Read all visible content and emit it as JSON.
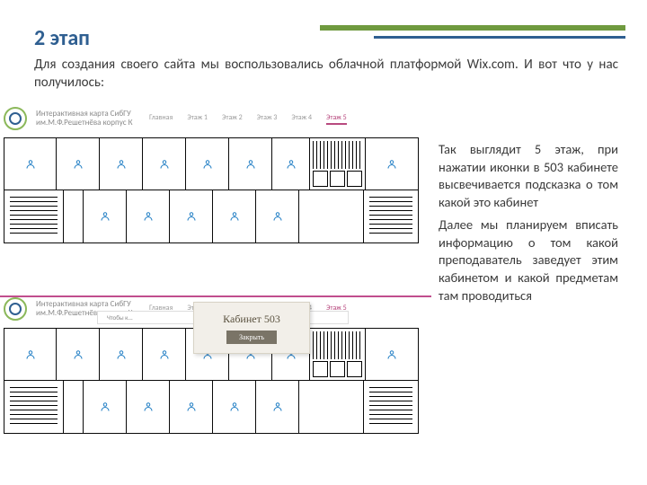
{
  "title": "2 этап",
  "intro": "Для создания своего сайта мы воспользовались облачной платформой Wix.com. И вот что у нас получилось:",
  "right_text": {
    "p1": "Так выглядит 5 этаж, при нажатии иконки в 503 кабинете высвечивается подсказка о том какой это кабинет",
    "p2": "Далее мы планируем вписать информацию о том какой преподаватель заведует этим кабинетом и какой предметам там проводиться"
  },
  "site": {
    "brand_line1": "Интерактивная карта СибГУ",
    "brand_line2": "им.М.Ф.Решетнёва корпус К",
    "nav": [
      "Главная",
      "Этаж 1",
      "Этаж 2",
      "Этаж 3",
      "Этаж 4",
      "Этаж 5"
    ],
    "active_index": 5
  },
  "modal": {
    "title": "Кабинет 503",
    "button": "Закрыть"
  },
  "banner_text": "Чтобы к...",
  "floorplan": {
    "top_room_widths": [
      58,
      48,
      48,
      48,
      48,
      48,
      42
    ],
    "bottom_room_count": 5,
    "bottom_room_width": 48,
    "icon_color": "#1f7dc4",
    "border_color": "#0a0a0a"
  },
  "colors": {
    "title": "#2f5f91",
    "accent_green": "#6f9a3f",
    "accent_pink": "#c14e8e",
    "nav_active": "#b84a7f",
    "modal_bg": "#f2efe9",
    "modal_btn": "#7a7467"
  }
}
